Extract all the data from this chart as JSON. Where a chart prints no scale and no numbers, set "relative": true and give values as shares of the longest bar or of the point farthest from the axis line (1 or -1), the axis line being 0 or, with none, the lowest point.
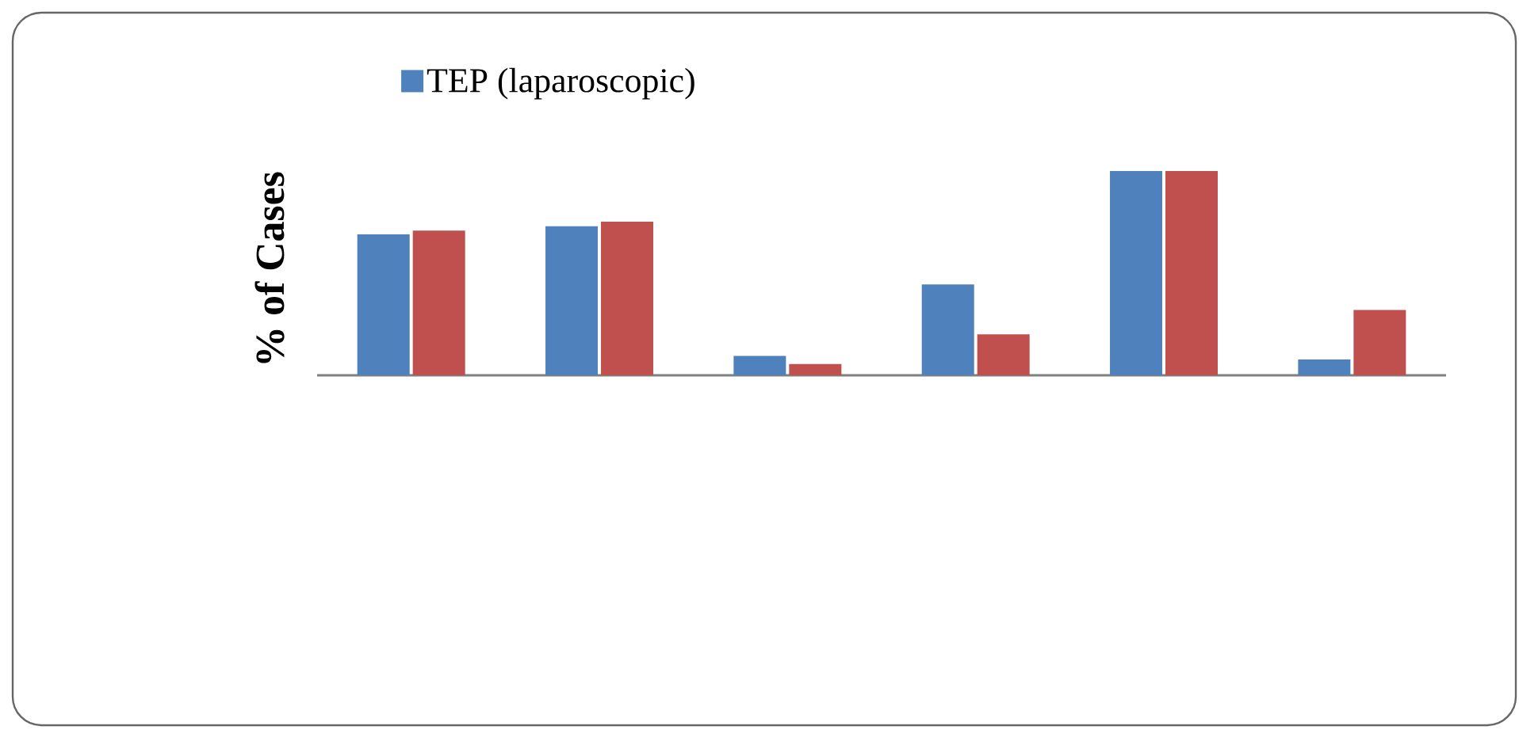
{
  "chart_data": {
    "type": "bar",
    "ylabel": "% of Cases",
    "relative": true,
    "legend": "top",
    "categories": [
      null,
      null,
      null,
      null,
      null,
      null
    ],
    "series": [
      {
        "name": "TEP (laparoscopic)",
        "color": "#4f81bd",
        "values": [
          0.69,
          0.73,
          0.095,
          0.445,
          1.0,
          0.077
        ]
      },
      {
        "color": "#c0504d",
        "values": [
          0.708,
          0.752,
          0.055,
          0.2,
          1.0,
          0.32
        ]
      }
    ]
  }
}
